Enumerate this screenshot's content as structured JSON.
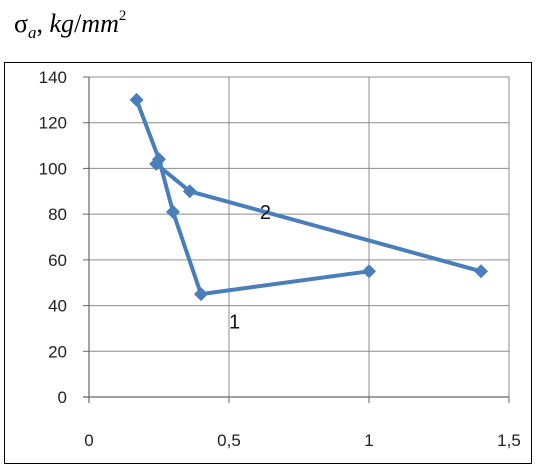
{
  "title": {
    "sigma": "σ",
    "sub": "a",
    "sep": ", ",
    "unit_main": "kg",
    "unit_slash": "/",
    "unit_den": "mm",
    "unit_exp": "2"
  },
  "chart_data": {
    "type": "scatter",
    "xlim": [
      0,
      1.5
    ],
    "ylim": [
      0,
      140
    ],
    "x_ticks": [
      "0",
      "0,5",
      "1",
      "1,5"
    ],
    "x_tick_values": [
      0,
      0.5,
      1,
      1.5
    ],
    "y_ticks": [
      "0",
      "20",
      "40",
      "60",
      "80",
      "100",
      "120",
      "140"
    ],
    "y_tick_values": [
      0,
      20,
      40,
      60,
      80,
      100,
      120,
      140
    ],
    "grid": true,
    "series": [
      {
        "points": [
          [
            0.17,
            130
          ],
          [
            0.25,
            104
          ],
          [
            0.3,
            81
          ],
          [
            0.4,
            45
          ],
          [
            1.0,
            55
          ]
        ]
      },
      {
        "points": [
          [
            0.24,
            102
          ],
          [
            0.36,
            90
          ],
          [
            1.4,
            55
          ]
        ]
      }
    ],
    "color": "#4a7ebb",
    "annotations": [
      {
        "text": "1",
        "x": 0.52,
        "y": 33
      },
      {
        "text": "2",
        "x": 0.63,
        "y": 81
      }
    ]
  }
}
